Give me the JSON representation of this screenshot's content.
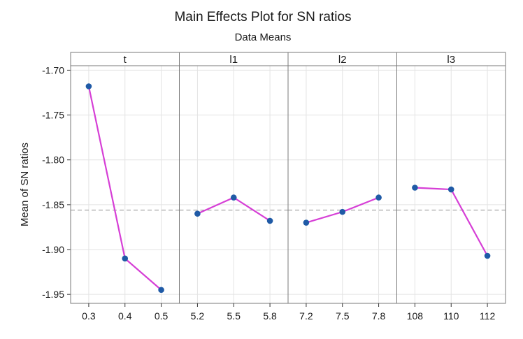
{
  "chart_data": {
    "type": "line",
    "title": "Main Effects Plot for SN ratios",
    "subtitle": "Data Means",
    "ylabel": "Mean of SN ratios",
    "ylim": [
      -1.96,
      -1.695
    ],
    "yticks": [
      -1.7,
      -1.75,
      -1.8,
      -1.85,
      -1.9,
      -1.95
    ],
    "ytick_labels": [
      "-1.70",
      "-1.75",
      "-1.80",
      "-1.85",
      "-1.90",
      "-1.95"
    ],
    "reference_line": -1.856,
    "grid": true,
    "colors": {
      "line": "#d63fd6",
      "marker": "#1f5aa6",
      "reference": "#9a9a9a",
      "grid": "#e3e3e3",
      "panel_border": "#7a7a7a"
    },
    "panels": [
      {
        "label": "t",
        "x": [
          "0.3",
          "0.4",
          "0.5"
        ],
        "values": [
          -1.718,
          -1.91,
          -1.945
        ]
      },
      {
        "label": "l1",
        "x": [
          "5.2",
          "5.5",
          "5.8"
        ],
        "values": [
          -1.86,
          -1.842,
          -1.868
        ]
      },
      {
        "label": "l2",
        "x": [
          "7.2",
          "7.5",
          "7.8"
        ],
        "values": [
          -1.87,
          -1.858,
          -1.842
        ]
      },
      {
        "label": "l3",
        "x": [
          "108",
          "110",
          "112"
        ],
        "values": [
          -1.831,
          -1.833,
          -1.907
        ]
      }
    ]
  }
}
